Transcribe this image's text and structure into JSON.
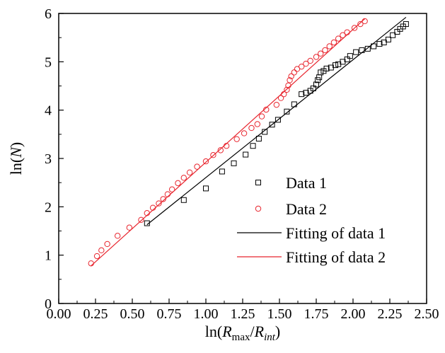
{
  "chart_data": {
    "type": "scatter",
    "xlabel": {
      "base": "ln(",
      "r1": "R",
      "sub1": "max",
      "slash": "/",
      "r2": "R",
      "sub2": "int",
      "close": ")"
    },
    "ylabel": {
      "base": "ln(",
      "n": "N",
      "close": ")"
    },
    "xlim": [
      0.0,
      2.5
    ],
    "ylim": [
      0,
      6
    ],
    "x_ticks": [
      0.0,
      0.25,
      0.5,
      0.75,
      1.0,
      1.25,
      1.5,
      1.75,
      2.0,
      2.25,
      2.5
    ],
    "x_tick_labels": [
      "0.00",
      "0.25",
      "0.50",
      "0.75",
      "1.00",
      "1.25",
      "1.50",
      "1.75",
      "2.00",
      "2.25",
      "2.50"
    ],
    "y_ticks": [
      0,
      1,
      2,
      3,
      4,
      5,
      6
    ],
    "y_tick_labels": [
      "0",
      "1",
      "2",
      "3",
      "4",
      "5",
      "6"
    ],
    "grid": false,
    "legend_position": "bottom-right",
    "series": [
      {
        "name": "Data 1",
        "marker": "square",
        "color": "#000000",
        "x": [
          0.6,
          0.85,
          1.0,
          1.11,
          1.19,
          1.27,
          1.32,
          1.36,
          1.4,
          1.45,
          1.49,
          1.55,
          1.6,
          1.65,
          1.68,
          1.71,
          1.73,
          1.75,
          1.76,
          1.77,
          1.78,
          1.8,
          1.82,
          1.85,
          1.88,
          1.9,
          1.93,
          1.96,
          1.98,
          2.02,
          2.06,
          2.1,
          2.14,
          2.18,
          2.21,
          2.24,
          2.27,
          2.3,
          2.32,
          2.34,
          2.36
        ],
        "y": [
          1.66,
          2.14,
          2.38,
          2.73,
          2.9,
          3.08,
          3.26,
          3.41,
          3.55,
          3.7,
          3.8,
          3.97,
          4.12,
          4.33,
          4.36,
          4.4,
          4.45,
          4.53,
          4.62,
          4.68,
          4.78,
          4.81,
          4.86,
          4.88,
          4.93,
          4.95,
          5.0,
          5.05,
          5.12,
          5.2,
          5.24,
          5.27,
          5.32,
          5.37,
          5.4,
          5.46,
          5.55,
          5.62,
          5.68,
          5.73,
          5.78
        ]
      },
      {
        "name": "Data 2",
        "marker": "circle",
        "color": "#e8252e",
        "x": [
          0.22,
          0.26,
          0.29,
          0.33,
          0.4,
          0.48,
          0.56,
          0.6,
          0.64,
          0.68,
          0.71,
          0.74,
          0.77,
          0.81,
          0.85,
          0.89,
          0.94,
          1.0,
          1.05,
          1.1,
          1.14,
          1.21,
          1.26,
          1.31,
          1.35,
          1.38,
          1.41,
          1.48,
          1.51,
          1.53,
          1.55,
          1.56,
          1.57,
          1.58,
          1.6,
          1.62,
          1.65,
          1.68,
          1.71,
          1.75,
          1.78,
          1.81,
          1.84,
          1.87,
          1.9,
          1.93,
          1.96,
          2.01,
          2.05,
          2.08
        ],
        "y": [
          0.83,
          0.98,
          1.1,
          1.23,
          1.4,
          1.57,
          1.73,
          1.87,
          1.98,
          2.07,
          2.16,
          2.26,
          2.36,
          2.49,
          2.6,
          2.71,
          2.83,
          2.94,
          3.07,
          3.17,
          3.26,
          3.4,
          3.52,
          3.63,
          3.71,
          3.87,
          4.01,
          4.11,
          4.25,
          4.33,
          4.42,
          4.51,
          4.62,
          4.7,
          4.78,
          4.85,
          4.9,
          4.96,
          5.02,
          5.1,
          5.17,
          5.24,
          5.32,
          5.4,
          5.48,
          5.55,
          5.61,
          5.7,
          5.78,
          5.84
        ]
      },
      {
        "name": "Fitting of data 1",
        "type": "line",
        "color": "#000000",
        "x": [
          0.6,
          2.36
        ],
        "y": [
          1.63,
          5.92
        ]
      },
      {
        "name": "Fitting of data 2",
        "type": "line",
        "color": "#e8252e",
        "x": [
          0.22,
          2.08
        ],
        "y": [
          0.78,
          5.89
        ]
      }
    ]
  }
}
